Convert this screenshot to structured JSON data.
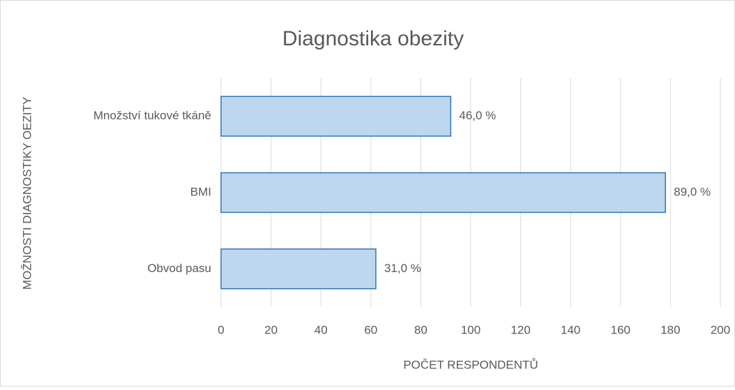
{
  "chart_data": {
    "type": "bar",
    "orientation": "horizontal",
    "title": "Diagnostika obezity",
    "x_label": "POČET RESPONDENTŮ",
    "y_label": "MOŽNOSTI DIAGNOSTIKY OEZITY",
    "categories": [
      "Množství tukové tkáně",
      "BMI",
      "Obvod pasu"
    ],
    "values": [
      92,
      178,
      62
    ],
    "value_labels": [
      "46,0 %",
      "89,0 %",
      "31,0 %"
    ],
    "color": "#bdd7ee",
    "edge_color": "#2e75b6",
    "xlim": [
      0,
      200
    ],
    "xticks": [
      0,
      20,
      40,
      60,
      80,
      100,
      120,
      140,
      160,
      180,
      200
    ],
    "grid": true
  }
}
